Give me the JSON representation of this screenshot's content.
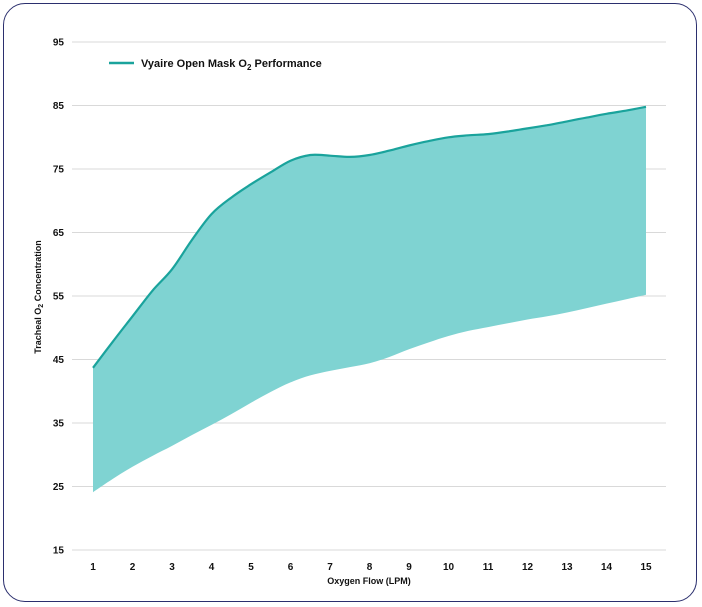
{
  "chart_data": {
    "type": "area",
    "x": [
      1,
      1.5,
      2,
      2.5,
      3,
      3.5,
      4,
      4.5,
      5,
      5.5,
      6,
      6.5,
      7,
      7.5,
      8,
      8.5,
      9,
      9.5,
      10,
      10.5,
      11,
      11.5,
      12,
      12.5,
      13,
      13.5,
      14,
      14.5,
      15
    ],
    "series": [
      {
        "name": "Vyaire Open Mask O₂ Performance",
        "role": "upper",
        "color": "#1aa39c",
        "values": [
          43.7,
          47.8,
          51.8,
          55.8,
          59.2,
          63.8,
          67.9,
          70.5,
          72.6,
          74.5,
          76.3,
          77.2,
          77.1,
          76.9,
          77.2,
          77.9,
          78.7,
          79.4,
          80.0,
          80.3,
          80.5,
          80.9,
          81.4,
          81.9,
          82.5,
          83.1,
          83.7,
          84.2,
          84.8
        ]
      },
      {
        "role": "lower",
        "values": [
          24.1,
          26.2,
          28.1,
          29.8,
          31.4,
          33.1,
          34.7,
          36.4,
          38.2,
          39.9,
          41.4,
          42.5,
          43.2,
          43.8,
          44.4,
          45.4,
          46.6,
          47.7,
          48.7,
          49.5,
          50.1,
          50.7,
          51.3,
          51.8,
          52.4,
          53.1,
          53.8,
          54.5,
          55.2
        ]
      }
    ],
    "fill_color": "#7fd3d2",
    "line_color": "#1aa39c",
    "xticks": [
      "1",
      "2",
      "3",
      "4",
      "5",
      "6",
      "7",
      "8",
      "9",
      "10",
      "11",
      "12",
      "13",
      "14",
      "15"
    ],
    "yticks": [
      "15",
      "25",
      "35",
      "45",
      "55",
      "65",
      "75",
      "85",
      "95"
    ],
    "xlim": [
      1,
      15
    ],
    "ylim": [
      15,
      95
    ],
    "xlabel": "Oxygen Flow (LPM)",
    "ylabel_main": "Tracheal O",
    "ylabel_sub": "2",
    "ylabel_tail": " Concentration",
    "legend_main": "Vyaire Open Mask O",
    "legend_sub": "2",
    "legend_tail": " Performance",
    "legend_position": "top-left",
    "grid": "horizontal",
    "grid_color": "#d9d9d9"
  }
}
